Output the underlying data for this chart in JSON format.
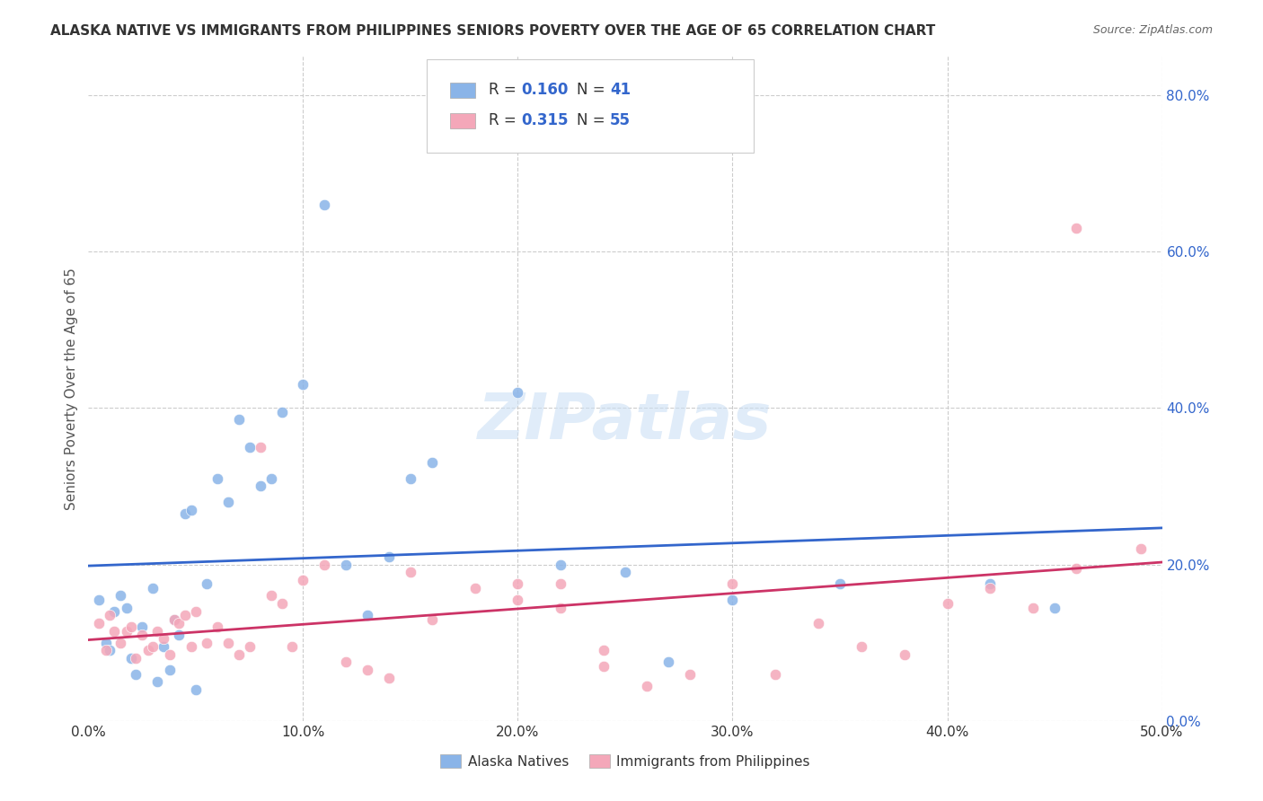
{
  "title": "ALASKA NATIVE VS IMMIGRANTS FROM PHILIPPINES SENIORS POVERTY OVER THE AGE OF 65 CORRELATION CHART",
  "source": "Source: ZipAtlas.com",
  "ylabel": "Seniors Poverty Over the Age of 65",
  "xlim": [
    0.0,
    0.5
  ],
  "ylim": [
    0.0,
    0.85
  ],
  "xtick_vals": [
    0.0,
    0.1,
    0.2,
    0.3,
    0.4,
    0.5
  ],
  "xtick_labels": [
    "0.0%",
    "10.0%",
    "20.0%",
    "30.0%",
    "40.0%",
    "50.0%"
  ],
  "ytick_vals": [
    0.0,
    0.2,
    0.4,
    0.6,
    0.8
  ],
  "ytick_labels": [
    "0.0%",
    "20.0%",
    "40.0%",
    "60.0%",
    "80.0%"
  ],
  "alaska_color": "#8ab4e8",
  "philippines_color": "#f4a7b9",
  "alaska_line_color": "#3366cc",
  "philippines_line_color": "#cc3366",
  "alaska_R": 0.16,
  "alaska_N": 41,
  "philippines_R": 0.315,
  "philippines_N": 55,
  "alaska_x": [
    0.005,
    0.008,
    0.01,
    0.012,
    0.015,
    0.018,
    0.02,
    0.022,
    0.025,
    0.03,
    0.032,
    0.035,
    0.038,
    0.04,
    0.042,
    0.045,
    0.048,
    0.05,
    0.055,
    0.06,
    0.065,
    0.07,
    0.075,
    0.08,
    0.085,
    0.09,
    0.1,
    0.11,
    0.12,
    0.13,
    0.14,
    0.15,
    0.16,
    0.2,
    0.22,
    0.25,
    0.27,
    0.3,
    0.35,
    0.42,
    0.45
  ],
  "alaska_y": [
    0.155,
    0.1,
    0.09,
    0.14,
    0.16,
    0.145,
    0.08,
    0.06,
    0.12,
    0.17,
    0.05,
    0.095,
    0.065,
    0.13,
    0.11,
    0.265,
    0.27,
    0.04,
    0.175,
    0.31,
    0.28,
    0.385,
    0.35,
    0.3,
    0.31,
    0.395,
    0.43,
    0.66,
    0.2,
    0.135,
    0.21,
    0.31,
    0.33,
    0.42,
    0.2,
    0.19,
    0.075,
    0.155,
    0.175,
    0.175,
    0.145
  ],
  "philippines_x": [
    0.005,
    0.008,
    0.01,
    0.012,
    0.015,
    0.018,
    0.02,
    0.022,
    0.025,
    0.028,
    0.03,
    0.032,
    0.035,
    0.038,
    0.04,
    0.042,
    0.045,
    0.048,
    0.05,
    0.055,
    0.06,
    0.065,
    0.07,
    0.075,
    0.08,
    0.085,
    0.09,
    0.095,
    0.1,
    0.11,
    0.12,
    0.13,
    0.14,
    0.15,
    0.16,
    0.18,
    0.2,
    0.22,
    0.24,
    0.26,
    0.28,
    0.3,
    0.32,
    0.34,
    0.36,
    0.38,
    0.4,
    0.42,
    0.44,
    0.46,
    0.2,
    0.22,
    0.24,
    0.46,
    0.49
  ],
  "philippines_y": [
    0.125,
    0.09,
    0.135,
    0.115,
    0.1,
    0.115,
    0.12,
    0.08,
    0.11,
    0.09,
    0.095,
    0.115,
    0.105,
    0.085,
    0.13,
    0.125,
    0.135,
    0.095,
    0.14,
    0.1,
    0.12,
    0.1,
    0.085,
    0.095,
    0.35,
    0.16,
    0.15,
    0.095,
    0.18,
    0.2,
    0.075,
    0.065,
    0.055,
    0.19,
    0.13,
    0.17,
    0.175,
    0.145,
    0.07,
    0.045,
    0.06,
    0.175,
    0.06,
    0.125,
    0.095,
    0.085,
    0.15,
    0.17,
    0.145,
    0.63,
    0.155,
    0.175,
    0.09,
    0.195,
    0.22
  ],
  "watermark": "ZIPatlas",
  "legend_label_alaska": "Alaska Natives",
  "legend_label_philippines": "Immigrants from Philippines",
  "background_color": "#ffffff",
  "grid_color": "#cccccc"
}
